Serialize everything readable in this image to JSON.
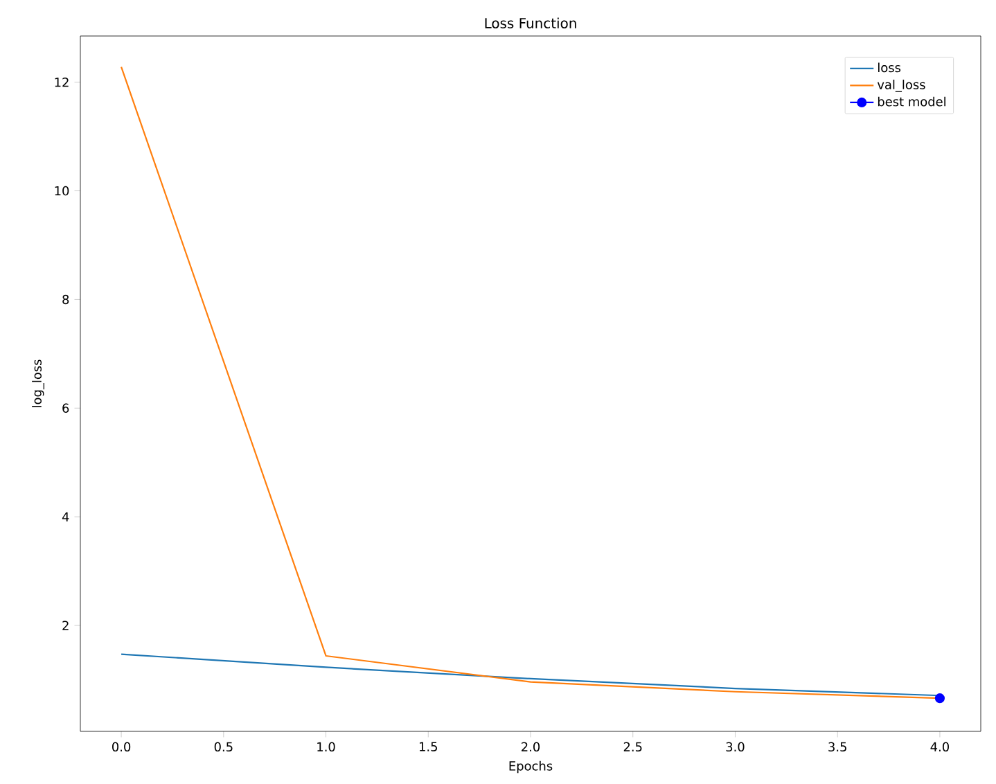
{
  "chart_data": {
    "type": "line",
    "title": "Loss Function",
    "xlabel": "Epochs",
    "ylabel": "log_loss",
    "x": [
      0,
      1,
      2,
      3,
      4
    ],
    "xlim": [
      -0.2,
      4.2
    ],
    "ylim": [
      0.05,
      12.85
    ],
    "xticks": [
      {
        "value": 0,
        "label": "0.0"
      },
      {
        "value": 0.5,
        "label": "0.5"
      },
      {
        "value": 1,
        "label": "1.0"
      },
      {
        "value": 1.5,
        "label": "1.5"
      },
      {
        "value": 2,
        "label": "2.0"
      },
      {
        "value": 2.5,
        "label": "2.5"
      },
      {
        "value": 3,
        "label": "3.0"
      },
      {
        "value": 3.5,
        "label": "3.5"
      },
      {
        "value": 4,
        "label": "4.0"
      }
    ],
    "yticks": [
      2,
      4,
      6,
      8,
      10,
      12
    ],
    "legend": "top right",
    "line_style": "solid",
    "series": [
      {
        "name": "loss",
        "color": "#1f77b4",
        "values": [
          1.47,
          1.23,
          1.02,
          0.84,
          0.71
        ]
      },
      {
        "name": "val_loss",
        "color": "#ff7f0e",
        "values": [
          12.28,
          1.44,
          0.96,
          0.78,
          0.66
        ]
      },
      {
        "name": "best model",
        "color": "#0000ff",
        "x": [
          4
        ],
        "values": [
          0.66
        ],
        "marker": "circle"
      }
    ]
  }
}
